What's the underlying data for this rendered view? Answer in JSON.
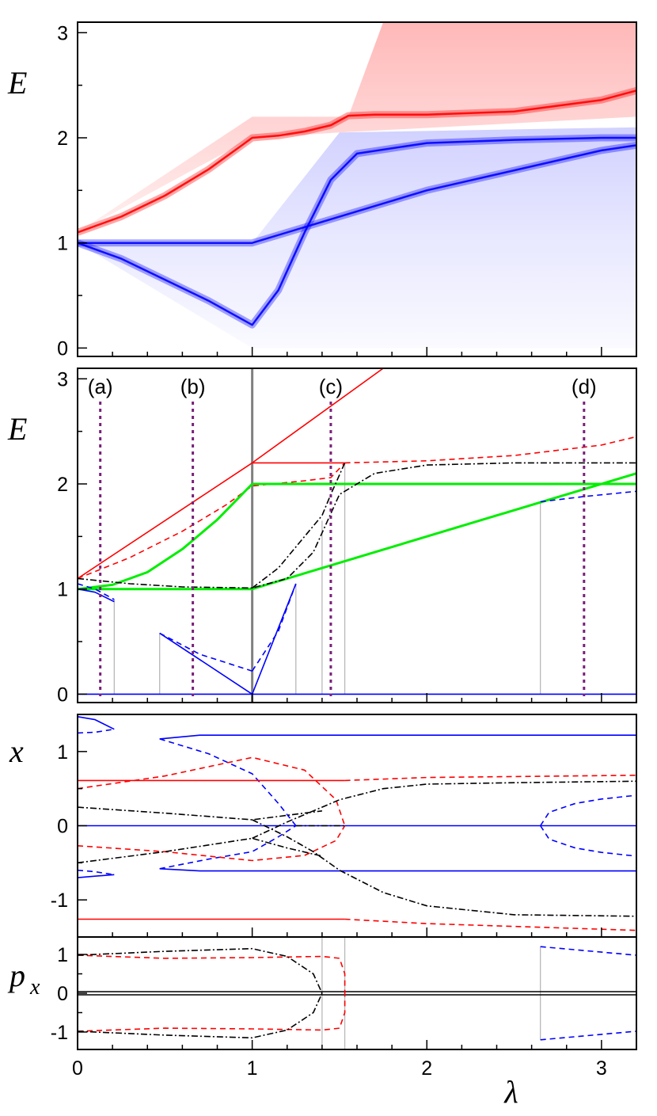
{
  "chart_data": [
    {
      "type": "area",
      "panel": "spectrum-density",
      "ylabel": "E",
      "xlim": [
        0,
        3.2
      ],
      "ylim": [
        -0.08,
        3.1
      ],
      "yticks": [
        "0",
        "1",
        "2",
        "3"
      ],
      "grid": false,
      "colors": {
        "upper": "#ff0000",
        "lower": "#0000ff"
      },
      "bands": [
        {
          "name": "upper-band",
          "color": "#ff0000",
          "lower_edge": {
            "x": [
              0,
              1,
              1.5,
              3.2
            ],
            "y": [
              1.1,
              2.0,
              2.05,
              2.2
            ]
          },
          "upper_edge": {
            "x": [
              0,
              1,
              1.55,
              1.75,
              3.2
            ],
            "y": [
              1.1,
              2.2,
              2.2,
              3.1,
              3.1
            ]
          }
        },
        {
          "name": "lower-band",
          "color": "#0000ff",
          "lower_edge": {
            "x": [
              0,
              1,
              3.2
            ],
            "y": [
              1.0,
              0.0,
              0.0
            ]
          },
          "upper_edge": {
            "x": [
              0,
              1,
              1.5,
              3.2
            ],
            "y": [
              1.0,
              1.0,
              2.05,
              2.1
            ]
          }
        }
      ],
      "ridges": [
        {
          "name": "upper-ridge",
          "color": "#ff0000",
          "x": [
            0,
            0.25,
            0.5,
            0.75,
            1.0,
            1.15,
            1.3,
            1.45,
            1.55,
            1.7,
            2.0,
            2.5,
            3.0,
            3.2
          ],
          "y": [
            1.1,
            1.25,
            1.45,
            1.7,
            2.0,
            2.02,
            2.06,
            2.12,
            2.21,
            2.22,
            2.22,
            2.25,
            2.36,
            2.45
          ]
        },
        {
          "name": "lower-ridge-diagonal",
          "color": "#0000ff",
          "x": [
            0,
            0.25,
            0.5,
            0.75,
            1.0,
            1.15,
            1.3,
            1.45,
            1.6,
            2.0,
            2.5,
            3.0,
            3.2
          ],
          "y": [
            1.0,
            0.85,
            0.65,
            0.45,
            0.22,
            0.55,
            1.1,
            1.6,
            1.85,
            1.95,
            1.98,
            2.0,
            2.0
          ]
        },
        {
          "name": "lower-ridge-flat",
          "color": "#0000ff",
          "x": [
            0,
            0.2,
            1.0,
            2.0,
            3.0,
            3.2
          ],
          "y": [
            1.0,
            1.0,
            1.0,
            1.5,
            1.88,
            1.93
          ]
        }
      ]
    },
    {
      "type": "line",
      "panel": "energy",
      "ylabel": "E",
      "xlim": [
        0,
        3.2
      ],
      "ylim": [
        -0.08,
        3.1
      ],
      "yticks": [
        "0",
        "1",
        "2",
        "3"
      ],
      "markers": [
        {
          "label": "(a)",
          "x": 0.13
        },
        {
          "label": "(b)",
          "x": 0.66
        },
        {
          "label": "(c)",
          "x": 1.45
        },
        {
          "label": "(d)",
          "x": 2.9
        }
      ],
      "critical_line": {
        "x": 1.0
      },
      "gray_verticals": [
        {
          "x": 0.21,
          "y": [
            0.0,
            0.9
          ]
        },
        {
          "x": 0.47,
          "y": [
            0.0,
            0.58
          ]
        },
        {
          "x": 1.25,
          "y": [
            0.0,
            1.05
          ]
        },
        {
          "x": 1.4,
          "y": [
            0.0,
            1.65
          ]
        },
        {
          "x": 1.53,
          "y": [
            0.0,
            2.2
          ]
        },
        {
          "x": 2.65,
          "y": [
            0.0,
            1.83
          ]
        }
      ],
      "series": [
        {
          "color": "#ff0000",
          "style": "solid",
          "x": [
            0,
            1,
            1.53
          ],
          "y": [
            1.1,
            2.2,
            2.2
          ]
        },
        {
          "color": "#ff0000",
          "style": "solid",
          "x": [
            1,
            1,
            1.75
          ],
          "y": [
            2.2,
            2.2,
            3.1
          ]
        },
        {
          "color": "#ff0000",
          "style": "dashed",
          "x": [
            0,
            0.3,
            0.6,
            0.85,
            1.0,
            1.3,
            1.45,
            1.53
          ],
          "y": [
            1.1,
            1.3,
            1.55,
            1.8,
            1.98,
            2.03,
            2.06,
            2.2
          ]
        },
        {
          "color": "#ff0000",
          "style": "dashed",
          "x": [
            1.53,
            2.0,
            2.5,
            3.0,
            3.2
          ],
          "y": [
            2.2,
            2.22,
            2.27,
            2.37,
            2.45
          ]
        },
        {
          "color": "#00ee00",
          "style": "solid",
          "x": [
            0,
            0.2,
            0.4,
            0.6,
            0.8,
            1.0
          ],
          "y": [
            1.0,
            1.04,
            1.16,
            1.38,
            1.66,
            2.0
          ]
        },
        {
          "color": "#00ee00",
          "style": "solid",
          "x": [
            0,
            1.0
          ],
          "y": [
            1.0,
            1.0
          ]
        },
        {
          "color": "#00ee00",
          "style": "solid",
          "x": [
            1.0,
            3.2
          ],
          "y": [
            2.0,
            2.0
          ]
        },
        {
          "color": "#00ee00",
          "style": "solid",
          "x": [
            1.0,
            3.2
          ],
          "y": [
            1.0,
            2.1
          ]
        },
        {
          "color": "#000000",
          "style": "dashdot",
          "x": [
            0,
            0.3,
            0.6,
            1.0,
            1.2,
            1.35,
            1.5,
            1.7,
            2.0,
            2.5,
            3.2
          ],
          "y": [
            1.1,
            1.05,
            1.02,
            1.01,
            1.1,
            1.35,
            1.9,
            2.1,
            2.18,
            2.2,
            2.2
          ]
        },
        {
          "color": "#000000",
          "style": "dashdot",
          "x": [
            1.0,
            1.15,
            1.3,
            1.4,
            1.45,
            1.53
          ],
          "y": [
            1.01,
            1.2,
            1.5,
            1.7,
            1.9,
            2.2
          ]
        },
        {
          "color": "#0000ff",
          "style": "solid",
          "x": [
            0,
            0.1,
            0.21
          ],
          "y": [
            1.0,
            0.97,
            0.88
          ]
        },
        {
          "color": "#0000ff",
          "style": "dashed",
          "x": [
            0,
            0.1,
            0.21
          ],
          "y": [
            1.05,
            1.0,
            0.9
          ]
        },
        {
          "color": "#0000ff",
          "style": "solid",
          "x": [
            0.47,
            1.0
          ],
          "y": [
            0.58,
            0.0
          ]
        },
        {
          "color": "#0000ff",
          "style": "dashed",
          "x": [
            0.47,
            0.7,
            1.0
          ],
          "y": [
            0.58,
            0.38,
            0.22
          ]
        },
        {
          "color": "#0000ff",
          "style": "solid",
          "x": [
            1.0,
            1.25
          ],
          "y": [
            0.0,
            1.05
          ]
        },
        {
          "color": "#0000ff",
          "style": "dashed",
          "x": [
            1.0,
            1.15,
            1.25
          ],
          "y": [
            0.22,
            0.6,
            1.05
          ]
        },
        {
          "color": "#0000ff",
          "style": "solid",
          "x": [
            0,
            3.2
          ],
          "y": [
            0.0,
            0.0
          ]
        },
        {
          "color": "#0000ff",
          "style": "dashed",
          "x": [
            2.65,
            2.9,
            3.2
          ],
          "y": [
            1.83,
            1.88,
            1.93
          ]
        }
      ]
    },
    {
      "type": "line",
      "panel": "position",
      "ylabel": "x",
      "xlim": [
        0,
        3.2
      ],
      "ylim": [
        -1.5,
        1.5
      ],
      "yticks": [
        "-1",
        "0",
        "1"
      ],
      "series": [
        {
          "color": "#0000ff",
          "style": "solid",
          "x": [
            0,
            0.1,
            0.21
          ],
          "y": [
            1.47,
            1.43,
            1.3
          ]
        },
        {
          "color": "#0000ff",
          "style": "dashed",
          "x": [
            0,
            0.1,
            0.21
          ],
          "y": [
            1.25,
            1.26,
            1.3
          ]
        },
        {
          "color": "#0000ff",
          "style": "solid",
          "x": [
            0,
            0.1,
            0.21
          ],
          "y": [
            -0.7,
            -0.68,
            -0.66
          ]
        },
        {
          "color": "#0000ff",
          "style": "dashed",
          "x": [
            0,
            0.1,
            0.21
          ],
          "y": [
            -0.6,
            -0.62,
            -0.66
          ]
        },
        {
          "color": "#0000ff",
          "style": "solid",
          "x": [
            0.47,
            0.7,
            3.2
          ],
          "y": [
            1.17,
            1.22,
            1.22
          ]
        },
        {
          "color": "#0000ff",
          "style": "dashed",
          "x": [
            0.47,
            0.75,
            1.0,
            1.15,
            1.25
          ],
          "y": [
            1.17,
            0.97,
            0.7,
            0.3,
            0.0
          ]
        },
        {
          "color": "#0000ff",
          "style": "solid",
          "x": [
            0.47,
            0.7,
            3.2
          ],
          "y": [
            -0.58,
            -0.61,
            -0.61
          ]
        },
        {
          "color": "#0000ff",
          "style": "dashed",
          "x": [
            0.47,
            0.75,
            1.0,
            1.15,
            1.25
          ],
          "y": [
            -0.58,
            -0.45,
            -0.35,
            -0.15,
            0.0
          ]
        },
        {
          "color": "#0000ff",
          "style": "solid",
          "x": [
            0,
            3.2
          ],
          "y": [
            0.0,
            0.0
          ]
        },
        {
          "color": "#0000ff",
          "style": "dashed",
          "x": [
            2.65,
            2.7,
            2.85,
            3.0,
            3.2
          ],
          "y": [
            0.0,
            0.18,
            0.3,
            0.36,
            0.41
          ]
        },
        {
          "color": "#0000ff",
          "style": "dashed",
          "x": [
            2.65,
            2.7,
            2.85,
            3.0,
            3.2
          ],
          "y": [
            0.0,
            -0.18,
            -0.3,
            -0.36,
            -0.41
          ]
        },
        {
          "color": "#ff0000",
          "style": "solid",
          "x": [
            0,
            1.53
          ],
          "y": [
            0.61,
            0.61
          ]
        },
        {
          "color": "#ff0000",
          "style": "dashed",
          "x": [
            0,
            0.5,
            1.0,
            1.3,
            1.48,
            1.53
          ],
          "y": [
            0.5,
            0.67,
            0.92,
            0.75,
            0.35,
            0.0
          ]
        },
        {
          "color": "#ff0000",
          "style": "dashed",
          "x": [
            1.53,
            2.0,
            3.2
          ],
          "y": [
            0.61,
            0.65,
            0.68
          ]
        },
        {
          "color": "#ff0000",
          "style": "dashed",
          "x": [
            0,
            0.5,
            1.0,
            1.3,
            1.48,
            1.53
          ],
          "y": [
            -0.27,
            -0.35,
            -0.47,
            -0.4,
            -0.2,
            0.0
          ]
        },
        {
          "color": "#ff0000",
          "style": "solid",
          "x": [
            0,
            1.53
          ],
          "y": [
            -1.26,
            -1.26
          ]
        },
        {
          "color": "#ff0000",
          "style": "dashed",
          "x": [
            1.53,
            2.0,
            3.2
          ],
          "y": [
            -1.26,
            -1.32,
            -1.41
          ]
        },
        {
          "color": "#000000",
          "style": "dashdot",
          "x": [
            0,
            0.5,
            1.0,
            1.2,
            1.4
          ],
          "y": [
            0.25,
            0.17,
            0.08,
            0.14,
            0.2
          ]
        },
        {
          "color": "#000000",
          "style": "dashdot",
          "x": [
            1.0,
            1.2,
            1.35,
            1.5,
            1.75,
            2.0,
            2.5,
            3.2
          ],
          "y": [
            0.08,
            -0.15,
            -0.35,
            -0.6,
            -0.9,
            -1.08,
            -1.2,
            -1.22
          ]
        },
        {
          "color": "#000000",
          "style": "dashdot",
          "x": [
            0,
            0.5,
            1.0,
            1.2,
            1.4
          ],
          "y": [
            -0.5,
            -0.35,
            -0.17,
            -0.3,
            -0.41
          ]
        },
        {
          "color": "#000000",
          "style": "dashdot",
          "x": [
            1.0,
            1.2,
            1.35,
            1.5,
            1.75,
            2.0,
            2.5,
            3.2
          ],
          "y": [
            -0.17,
            0.05,
            0.2,
            0.35,
            0.5,
            0.56,
            0.58,
            0.6
          ]
        },
        {
          "color": "#000000",
          "style": "dashdot",
          "x": [
            1.25,
            1.4,
            1.53
          ],
          "y": [
            0.0,
            0.0,
            0.0
          ]
        }
      ]
    },
    {
      "type": "line",
      "panel": "momentum",
      "ylabel": "p",
      "ylabel_sub": "x",
      "xlabel": "λ",
      "xlim": [
        0,
        3.2
      ],
      "ylim": [
        -1.45,
        1.45
      ],
      "xticks": [
        "0",
        "1",
        "2",
        "3"
      ],
      "yticks": [
        "-1",
        "0",
        "1"
      ],
      "series": [
        {
          "color": "#000000",
          "style": "solid",
          "x": [
            0,
            3.2
          ],
          "y": [
            0.04,
            0.04
          ]
        },
        {
          "color": "#000000",
          "style": "solid",
          "x": [
            0,
            3.2
          ],
          "y": [
            -0.04,
            -0.04
          ]
        },
        {
          "color": "#ff0000",
          "style": "dashed",
          "x": [
            0,
            0.5,
            1.0,
            1.4,
            1.5,
            1.53,
            1.53
          ],
          "y": [
            0.98,
            0.9,
            0.92,
            0.95,
            0.9,
            0.5,
            0.0
          ]
        },
        {
          "color": "#ff0000",
          "style": "dashed",
          "x": [
            0,
            0.5,
            1.0,
            1.4,
            1.5,
            1.53,
            1.53
          ],
          "y": [
            -0.98,
            -0.9,
            -0.92,
            -0.95,
            -0.9,
            -0.5,
            0.0
          ]
        },
        {
          "color": "#000000",
          "style": "dashdot",
          "x": [
            0,
            0.5,
            1.0,
            1.2,
            1.35,
            1.4
          ],
          "y": [
            0.98,
            1.08,
            1.15,
            0.95,
            0.5,
            0.0
          ]
        },
        {
          "color": "#000000",
          "style": "dashdot",
          "x": [
            0,
            0.5,
            1.0,
            1.2,
            1.35,
            1.4
          ],
          "y": [
            -0.98,
            -1.08,
            -1.15,
            -0.95,
            -0.5,
            0.0
          ]
        },
        {
          "color": "#0000ff",
          "style": "dashed",
          "x": [
            2.65,
            2.9,
            3.2
          ],
          "y": [
            1.2,
            1.1,
            0.98
          ]
        },
        {
          "color": "#0000ff",
          "style": "dashed",
          "x": [
            2.65,
            2.9,
            3.2
          ],
          "y": [
            -1.2,
            -1.1,
            -0.98
          ]
        }
      ],
      "gray_verticals": [
        {
          "x": 1.4,
          "y": [
            -1.45,
            1.45
          ]
        },
        {
          "x": 1.53,
          "y": [
            -1.45,
            1.45
          ]
        },
        {
          "x": 2.65,
          "y": [
            -1.2,
            1.2
          ]
        }
      ]
    }
  ]
}
